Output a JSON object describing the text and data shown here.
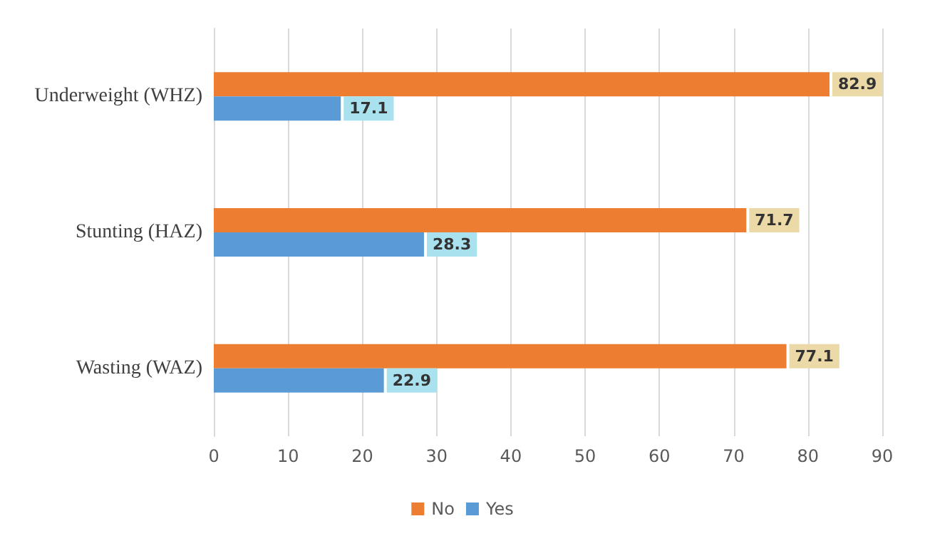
{
  "chart_data": {
    "type": "bar",
    "orientation": "horizontal",
    "categories": [
      "Underweight (WHZ)",
      "Stunting (HAZ)",
      "Wasting (WAZ)"
    ],
    "series": [
      {
        "name": "No",
        "color": "#ed7d31",
        "values": [
          82.9,
          71.7,
          77.1
        ]
      },
      {
        "name": "Yes",
        "color": "#5b9bd5",
        "values": [
          17.1,
          28.3,
          22.9
        ]
      }
    ],
    "xlim": [
      0,
      90
    ],
    "xticks": [
      0,
      10,
      20,
      30,
      40,
      50,
      60,
      70,
      80,
      90
    ],
    "grid": "x",
    "legend": "bottom",
    "data_labels": true
  }
}
